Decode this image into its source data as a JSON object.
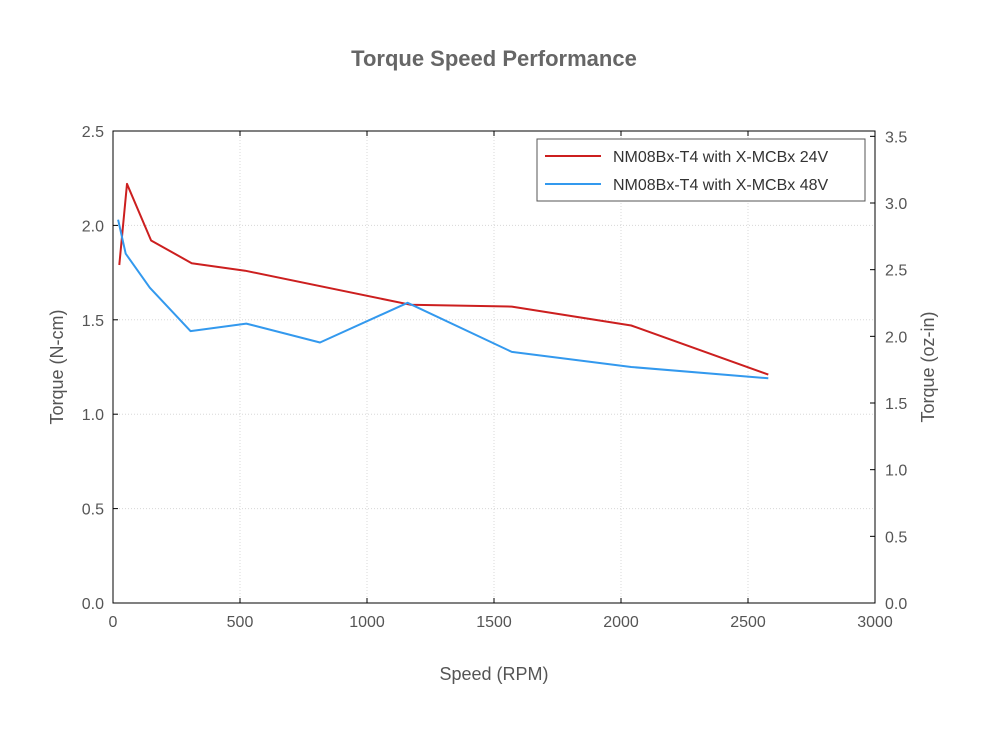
{
  "chart_data": {
    "type": "line",
    "title": "Torque Speed Performance",
    "xlabel": "Speed (RPM)",
    "ylabel": "Torque (N-cm)",
    "y2label": "Torque (oz-in)",
    "xlim": [
      0,
      3000
    ],
    "ylim": [
      0,
      2.5
    ],
    "y2lim": [
      0,
      3.54
    ],
    "xticks": [
      "0",
      "500",
      "1000",
      "1500",
      "2000",
      "2500",
      "3000"
    ],
    "yticks": [
      "0.0",
      "0.5",
      "1.0",
      "1.5",
      "2.0",
      "2.5"
    ],
    "y2ticks": [
      "0.0",
      "0.5",
      "1.0",
      "1.5",
      "2.0",
      "2.5",
      "3.0",
      "3.5"
    ],
    "grid": true,
    "legend_position": "top-right",
    "series": [
      {
        "name": "NM08Bx-T4 with X-MCBx 24V",
        "color": "#cc1f1f",
        "x": [
          25,
          55,
          150,
          310,
          520,
          1170,
          1570,
          2040,
          2580
        ],
        "y": [
          1.79,
          2.22,
          1.92,
          1.8,
          1.76,
          1.58,
          1.57,
          1.47,
          1.21
        ]
      },
      {
        "name": "NM08Bx-T4 with X-MCBx 48V",
        "color": "#3399ee",
        "x": [
          20,
          50,
          145,
          305,
          525,
          815,
          1160,
          1570,
          2040,
          2580
        ],
        "y": [
          2.03,
          1.85,
          1.67,
          1.44,
          1.48,
          1.38,
          1.59,
          1.33,
          1.25,
          1.19
        ]
      }
    ]
  }
}
